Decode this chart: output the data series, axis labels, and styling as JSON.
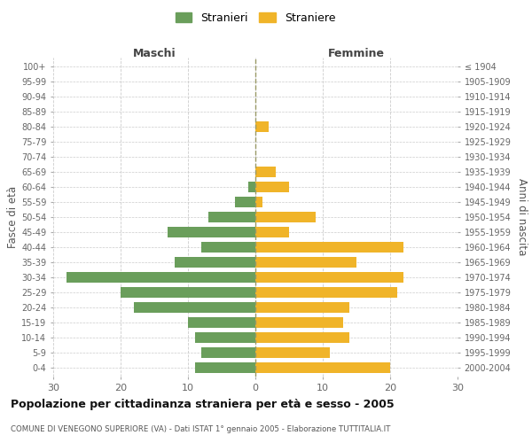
{
  "age_groups": [
    "100+",
    "95-99",
    "90-94",
    "85-89",
    "80-84",
    "75-79",
    "70-74",
    "65-69",
    "60-64",
    "55-59",
    "50-54",
    "45-49",
    "40-44",
    "35-39",
    "30-34",
    "25-29",
    "20-24",
    "15-19",
    "10-14",
    "5-9",
    "0-4"
  ],
  "birth_years": [
    "≤ 1904",
    "1905-1909",
    "1910-1914",
    "1915-1919",
    "1920-1924",
    "1925-1929",
    "1930-1934",
    "1935-1939",
    "1940-1944",
    "1945-1949",
    "1950-1954",
    "1955-1959",
    "1960-1964",
    "1965-1969",
    "1970-1974",
    "1975-1979",
    "1980-1984",
    "1985-1989",
    "1990-1994",
    "1995-1999",
    "2000-2004"
  ],
  "maschi": [
    0,
    0,
    0,
    0,
    0,
    0,
    0,
    0,
    1,
    3,
    7,
    13,
    8,
    12,
    28,
    20,
    18,
    10,
    9,
    8,
    9
  ],
  "femmine": [
    0,
    0,
    0,
    0,
    2,
    0,
    0,
    3,
    5,
    1,
    9,
    5,
    22,
    15,
    22,
    21,
    14,
    13,
    14,
    11,
    20
  ],
  "color_maschi": "#6a9e5b",
  "color_femmine": "#f0b429",
  "title": "Popolazione per cittadinanza straniera per età e sesso - 2005",
  "subtitle": "COMUNE DI VENEGONO SUPERIORE (VA) - Dati ISTAT 1° gennaio 2005 - Elaborazione TUTTITALIA.IT",
  "xlabel_left": "Maschi",
  "xlabel_right": "Femmine",
  "ylabel_left": "Fasce di età",
  "ylabel_right": "Anni di nascita",
  "legend_maschi": "Stranieri",
  "legend_femmine": "Straniere",
  "xlim": 30,
  "background_color": "#ffffff"
}
